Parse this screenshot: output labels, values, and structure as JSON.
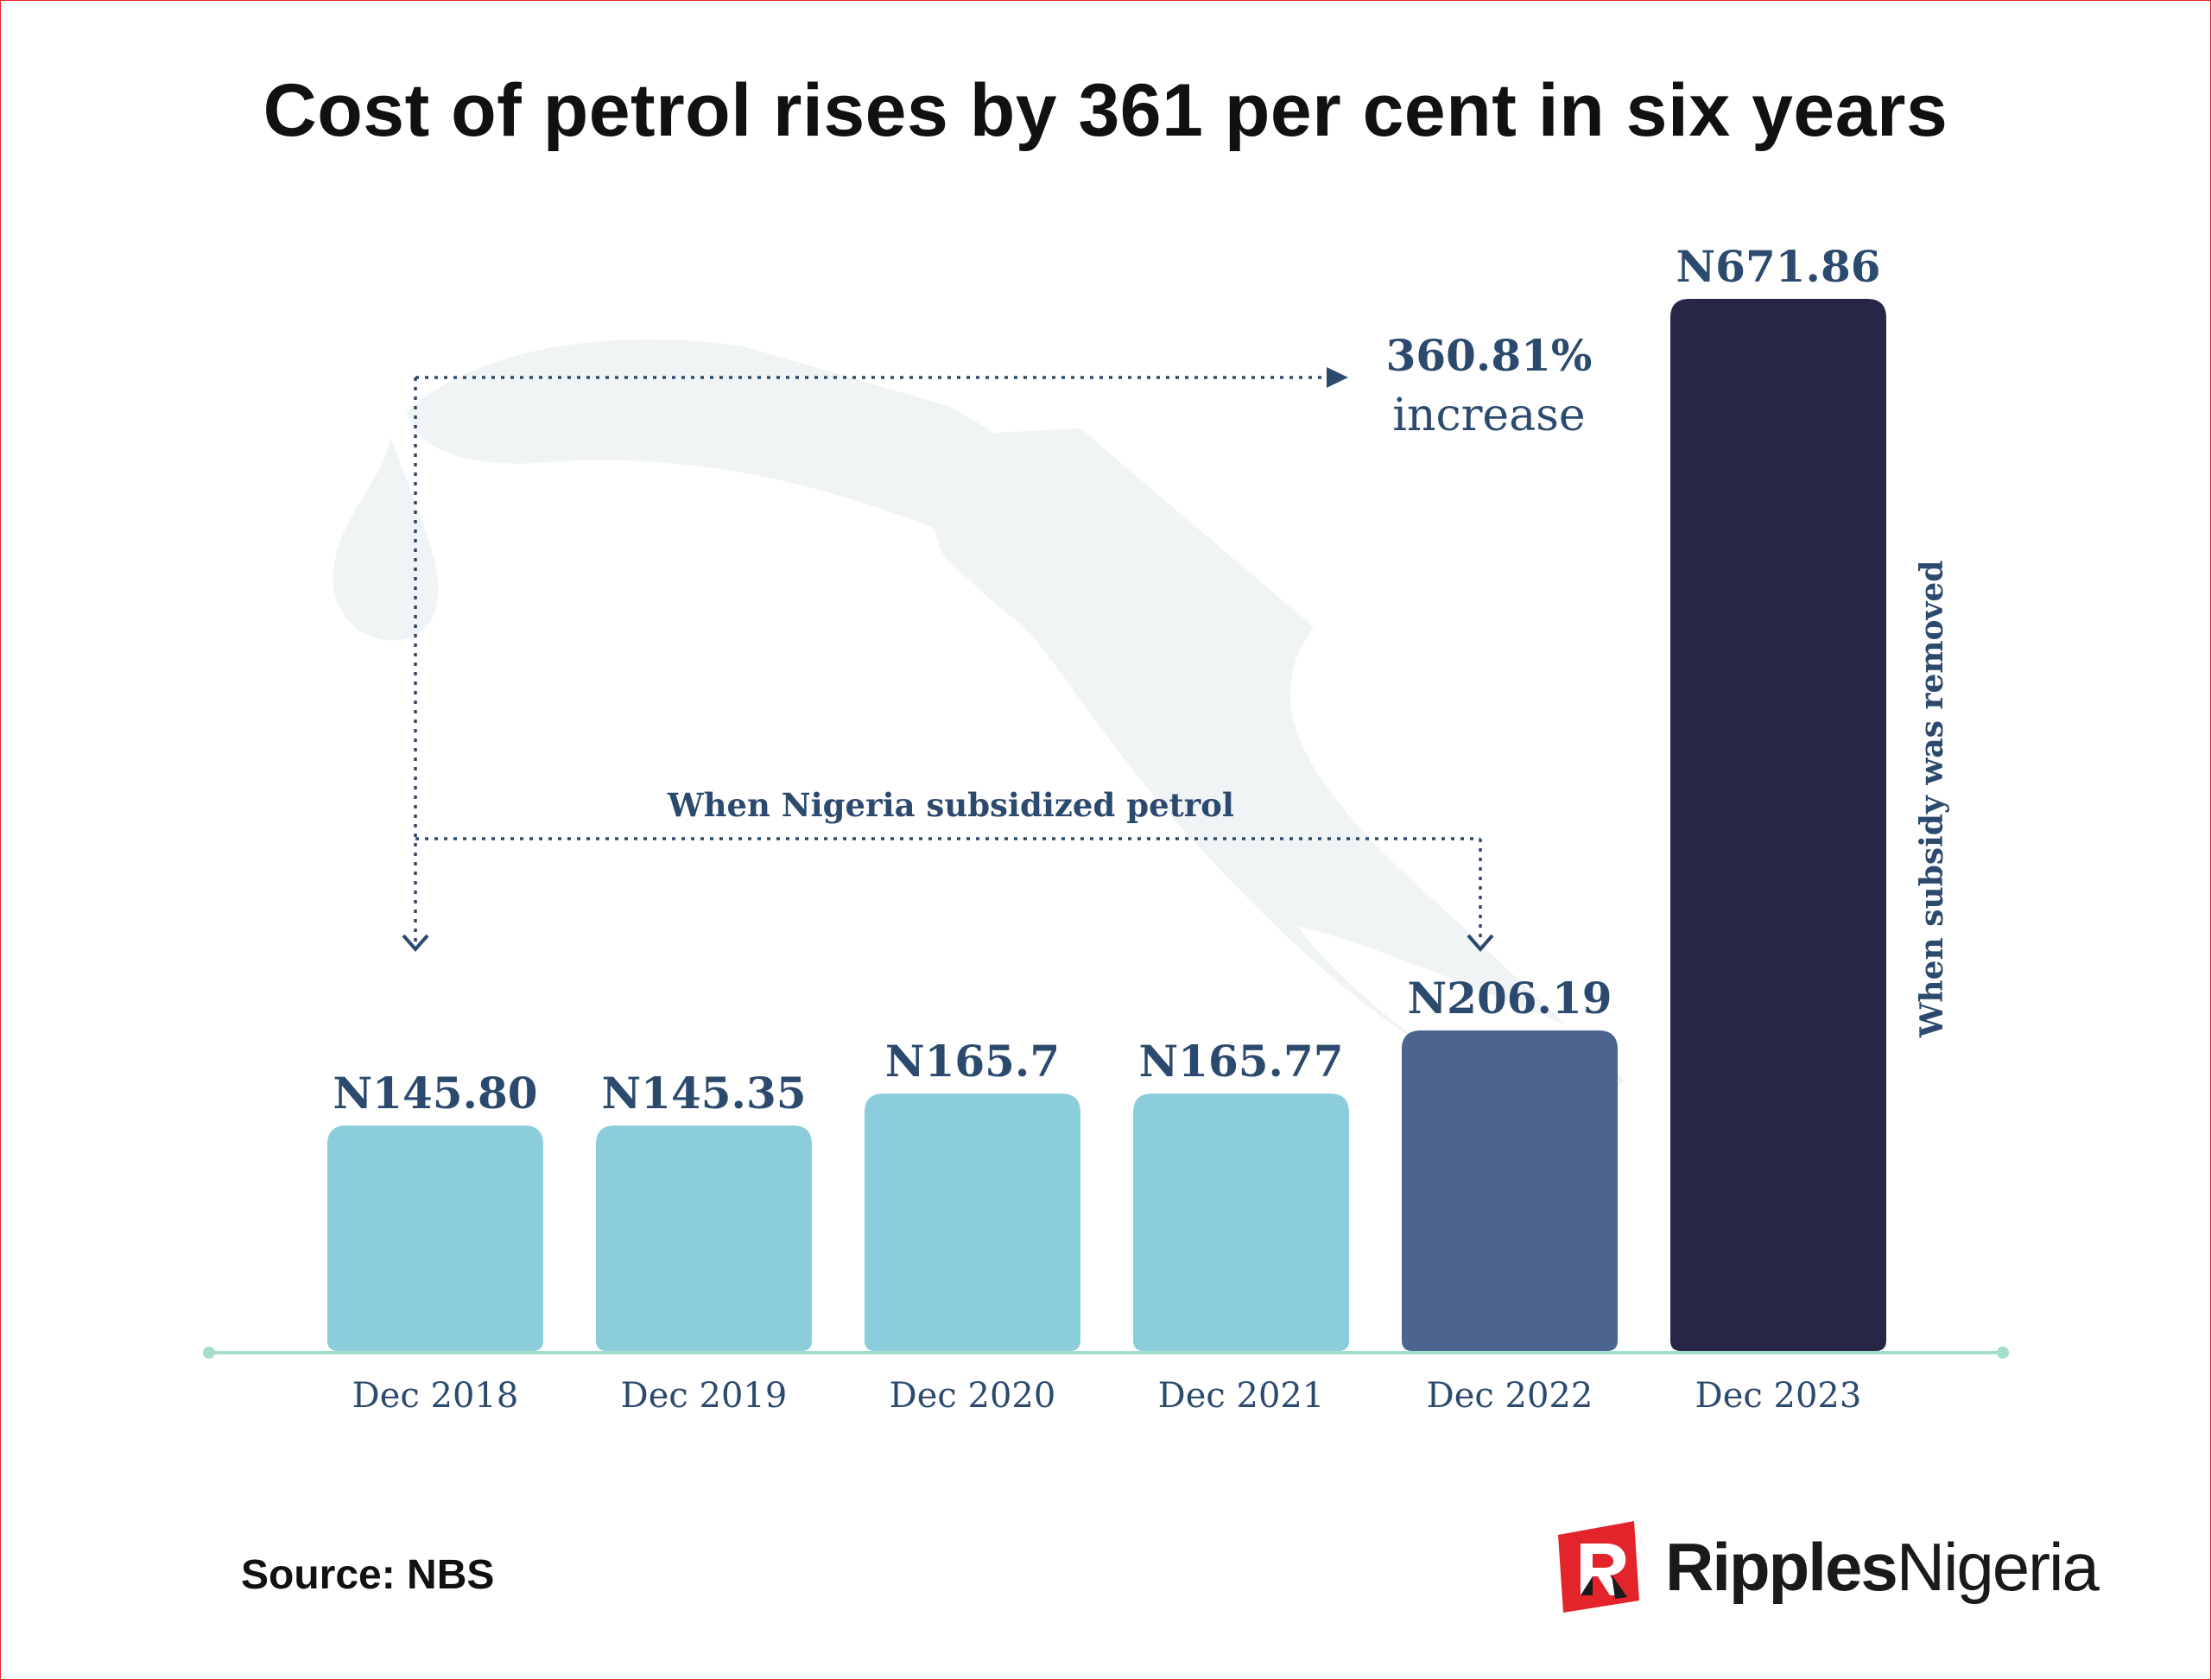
{
  "title": "Cost of petrol rises by 361 per cent in six years",
  "source": "Source: NBS",
  "brand": {
    "bold": "Ripples",
    "regular": "Nigeria",
    "accent_color": "#e3242b"
  },
  "annotations": {
    "increase_pct": "360.81%",
    "increase_word": "increase",
    "subsidy_period": "When Nigeria subsidized petrol",
    "subsidy_removed": "When  subsidy was removed"
  },
  "colors": {
    "subsidized_bar": "#8ccddc",
    "dec_2022_bar": "#4b6590",
    "dec_2023_bar": "#262746",
    "label_text": "#2c4a6e",
    "baseline": "#a4dccd",
    "watermark": "#f1f4f5"
  },
  "chart_data": {
    "type": "bar",
    "categories": [
      "Dec 2018",
      "Dec 2019",
      "Dec 2020",
      "Dec 2021",
      "Dec 2022",
      "Dec 2023"
    ],
    "values": [
      145.8,
      145.35,
      165.7,
      165.77,
      206.19,
      671.86
    ],
    "value_labels": [
      "N145.80",
      "N145.35",
      "N165.7",
      "N165.77",
      "N206.19",
      "N671.86"
    ],
    "ylim": [
      0,
      700
    ],
    "grid": false,
    "legend": "none"
  }
}
